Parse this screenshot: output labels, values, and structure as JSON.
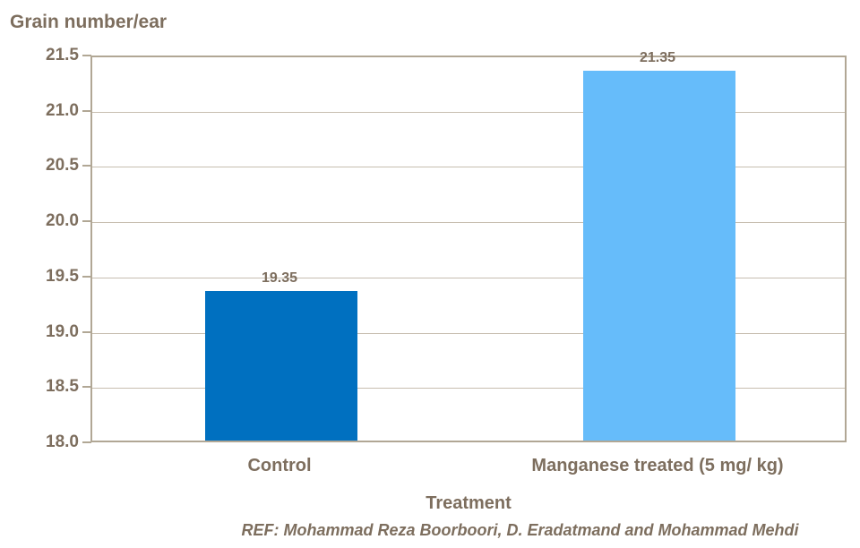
{
  "chart_data": {
    "type": "bar",
    "title": "Grain number/ear",
    "xlabel": "Treatment",
    "ylabel": "Grain number/ear",
    "categories": [
      "Control",
      "Manganese treated (5 mg/ kg)"
    ],
    "values": [
      19.35,
      21.35
    ],
    "data_labels": [
      "19.35",
      "21.35"
    ],
    "bar_colors": [
      "#0070C0",
      "#66BCFA"
    ],
    "ylim": [
      18.0,
      21.5
    ],
    "ytick_step": 0.5,
    "ytick_labels": [
      "18.0",
      "18.5",
      "19.0",
      "19.5",
      "20.0",
      "20.5",
      "21.0",
      "21.5"
    ],
    "grid": true,
    "legend": false
  },
  "footer": {
    "ref_text": "REF: Mohammad Reza Boorboori, D. Eradatmand and Mohammad Mehdi"
  },
  "theme": {
    "text_color": "#7D6E5E",
    "gridline_color": "#C7BEB0",
    "axis_border_color": "#B1A795",
    "background": "#FFFFFF"
  }
}
